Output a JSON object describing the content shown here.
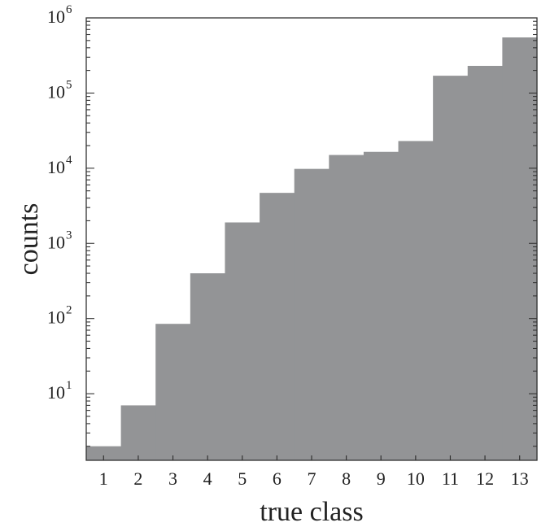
{
  "chart_data": {
    "type": "bar",
    "title": "",
    "xlabel": "true class",
    "ylabel": "counts",
    "y_scale": "log",
    "ylim": [
      1.3,
      1000000
    ],
    "grid": false,
    "legend": "none",
    "bar_color": "#939496",
    "categories": [
      "1",
      "2",
      "3",
      "4",
      "5",
      "6",
      "7",
      "8",
      "9",
      "10",
      "11",
      "12",
      "13"
    ],
    "values": [
      2,
      7,
      85,
      400,
      1900,
      4700,
      9800,
      15000,
      16500,
      23000,
      170000,
      230000,
      550000
    ],
    "y_tick_labels": [
      {
        "base": "10",
        "exp": "1"
      },
      {
        "base": "10",
        "exp": "2"
      },
      {
        "base": "10",
        "exp": "3"
      },
      {
        "base": "10",
        "exp": "4"
      },
      {
        "base": "10",
        "exp": "5"
      },
      {
        "base": "10",
        "exp": "6"
      }
    ]
  }
}
